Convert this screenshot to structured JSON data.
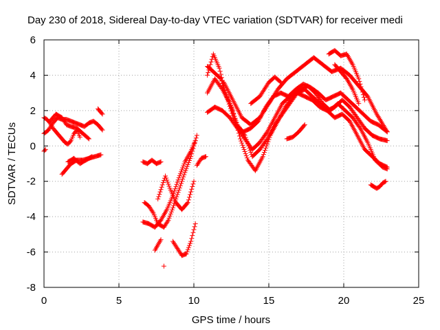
{
  "chart_data": {
    "type": "scatter",
    "title": "Day 230 of 2018, Sidereal Day-to-day VTEC variation (SDTVAR) for receiver medi",
    "xlabel": "GPS time / hours",
    "ylabel": "SDTVAR / TECUs",
    "xlim": [
      0,
      25
    ],
    "ylim": [
      -8,
      6
    ],
    "xticks": [
      "0",
      "5",
      "10",
      "15",
      "20",
      "25"
    ],
    "yticks": [
      "-8",
      "-6",
      "-4",
      "-2",
      "0",
      "2",
      "4",
      "6"
    ],
    "grid": true,
    "legend": "none",
    "marker": "+",
    "color": "#ff0000",
    "series": [
      {
        "x": [
          0,
          0.2,
          0.4,
          0.6,
          0.8,
          1.0,
          1.2,
          1.4,
          1.6,
          1.8,
          2.0,
          2.2,
          2.4
        ],
        "y": [
          1.6,
          1.5,
          1.3,
          1.0,
          0.8,
          0.6,
          0.4,
          0.2,
          0.1,
          0.3,
          0.7,
          0.9,
          0.5
        ]
      },
      {
        "x": [
          0,
          0.3,
          0.6,
          0.9,
          1.2,
          1.5,
          1.8,
          2.1,
          2.4,
          2.7,
          3.0,
          3.3,
          3.6,
          3.9
        ],
        "y": [
          0.7,
          0.9,
          1.3,
          1.6,
          1.5,
          1.5,
          1.4,
          1.3,
          1.2,
          1.1,
          1.3,
          1.4,
          1.2,
          0.9
        ]
      },
      {
        "x": [
          0.4,
          0.8,
          1.2,
          1.5,
          1.8,
          2.2,
          2.6,
          3.0
        ],
        "y": [
          1.4,
          1.8,
          1.6,
          1.2,
          1.1,
          1.0,
          0.7,
          0.4
        ]
      },
      {
        "x": [
          1.2,
          1.5,
          1.8,
          2.2,
          2.6,
          3.0,
          3.4,
          3.8
        ],
        "y": [
          -1.6,
          -1.3,
          -1.0,
          -0.8,
          -0.8,
          -0.7,
          -0.6,
          -0.5
        ]
      },
      {
        "x": [
          1.6,
          2.0,
          2.4,
          2.8,
          3.2
        ],
        "y": [
          -0.9,
          -0.7,
          -1.0,
          -0.8,
          -0.6
        ]
      },
      {
        "x": [
          3.6,
          3.7,
          3.8,
          3.9
        ],
        "y": [
          2.1,
          2.0,
          1.9,
          1.8
        ]
      },
      {
        "x": [
          0,
          0.1
        ],
        "y": [
          -0.3,
          -0.2
        ]
      },
      {
        "x": [
          6.6,
          6.9,
          7.2,
          7.5,
          7.8
        ],
        "y": [
          -0.9,
          -1.0,
          -0.8,
          -1.0,
          -0.9
        ]
      },
      {
        "x": [
          6.6,
          7.0,
          7.4,
          7.8,
          8.2,
          8.6,
          9.0,
          9.4,
          9.8,
          10.1
        ],
        "y": [
          -4.3,
          -4.4,
          -4.6,
          -4.2,
          -3.6,
          -2.8,
          -1.8,
          -0.9,
          -0.3,
          0.3
        ]
      },
      {
        "x": [
          6.7,
          7.0,
          7.3,
          7.6,
          8.0,
          8.3,
          8.6,
          9.0,
          9.4,
          9.8,
          10.2
        ],
        "y": [
          -3.2,
          -3.4,
          -3.8,
          -4.4,
          -4.6,
          -4.2,
          -3.5,
          -2.5,
          -1.5,
          -0.6,
          0.6
        ]
      },
      {
        "x": [
          7.6,
          7.9,
          8.1,
          8.4,
          8.8,
          9.2,
          9.6,
          10.0
        ],
        "y": [
          -3.0,
          -2.2,
          -1.7,
          -2.4,
          -3.2,
          -3.6,
          -3.2,
          -2.0
        ]
      },
      {
        "x": [
          7.4,
          7.6,
          7.8
        ],
        "y": [
          -5.9,
          -5.6,
          -5.3
        ]
      },
      {
        "x": [
          8.6,
          8.9,
          9.2,
          9.5,
          9.8,
          10.1
        ],
        "y": [
          -5.4,
          -5.8,
          -6.2,
          -6.1,
          -5.4,
          -4.4
        ]
      },
      {
        "x": [
          8.0
        ],
        "y": [
          -6.8
        ]
      },
      {
        "x": [
          10.2,
          10.5,
          10.8
        ],
        "y": [
          -1.1,
          -0.7,
          -0.6
        ]
      },
      {
        "x": [
          10.9,
          11.3,
          11.8,
          12.3,
          12.8,
          13.3,
          13.8,
          14.3,
          14.8,
          15.3,
          15.8,
          16.3,
          16.8,
          17.3,
          17.8,
          18.3,
          18.8,
          19.3,
          19.8,
          20.3,
          20.8,
          21.3,
          21.8,
          22.3,
          22.9
        ],
        "y": [
          4.5,
          4.2,
          3.8,
          2.5,
          1.2,
          0.8,
          1.0,
          1.4,
          2.2,
          2.8,
          3.0,
          2.8,
          3.2,
          3.5,
          3.3,
          3.0,
          2.6,
          2.8,
          3.0,
          2.6,
          2.2,
          1.8,
          1.4,
          1.2,
          0.8
        ]
      },
      {
        "x": [
          10.9,
          11.3,
          11.7,
          12.1,
          12.6,
          13.1,
          13.6,
          14.1,
          14.6,
          15.1,
          15.6,
          16.1,
          16.6,
          17.1,
          17.6,
          18.1,
          18.6,
          19.1,
          19.6,
          20.1,
          20.6,
          21.1,
          21.6,
          22.1,
          22.6,
          22.9
        ],
        "y": [
          4.0,
          5.2,
          4.4,
          3.0,
          2.0,
          0.4,
          -0.8,
          -1.4,
          -0.6,
          0.6,
          1.4,
          2.2,
          2.8,
          3.2,
          3.4,
          3.0,
          2.4,
          2.0,
          2.4,
          2.0,
          1.6,
          1.0,
          0.2,
          -0.8,
          -1.2,
          -1.3
        ]
      },
      {
        "x": [
          10.9,
          11.4,
          11.9,
          12.4,
          12.9,
          13.4,
          13.9,
          14.4,
          14.9,
          15.4,
          15.9,
          16.4,
          16.9,
          17.4,
          17.9,
          18.4,
          18.9,
          19.4,
          19.9,
          20.4,
          20.9,
          21.4,
          21.9,
          22.4,
          22.9
        ],
        "y": [
          3.0,
          3.8,
          3.2,
          2.4,
          1.2,
          0.6,
          -0.6,
          -0.2,
          0.4,
          1.2,
          1.8,
          2.4,
          3.0,
          3.2,
          2.8,
          2.4,
          2.0,
          1.6,
          1.8,
          1.4,
          0.6,
          -0.2,
          -0.6,
          -1.0,
          -1.2
        ]
      },
      {
        "x": [
          10.9,
          11.4,
          11.9,
          12.4,
          12.9,
          13.4,
          13.9,
          14.4,
          14.9,
          15.4,
          15.9,
          16.4,
          16.9,
          17.4,
          17.9,
          18.4,
          18.9,
          19.4,
          19.9,
          20.4,
          20.9,
          21.4,
          21.9,
          22.4,
          22.9
        ],
        "y": [
          1.9,
          2.2,
          2.0,
          1.6,
          1.0,
          0.4,
          -0.2,
          0.2,
          0.8,
          1.6,
          2.4,
          2.8,
          3.0,
          2.8,
          2.6,
          2.2,
          2.0,
          2.2,
          2.6,
          2.2,
          1.6,
          1.0,
          0.6,
          0.4,
          0.3
        ]
      },
      {
        "x": [
          12.0,
          12.6,
          13.2,
          13.8,
          14.4,
          15.0,
          15.6,
          16.2,
          16.8,
          17.4,
          18.0,
          18.6,
          19.2,
          19.8,
          20.4,
          21.0,
          21.6,
          22.2,
          22.9
        ],
        "y": [
          3.6,
          2.6,
          1.6,
          1.2,
          1.6,
          2.4,
          3.2,
          3.8,
          4.2,
          4.6,
          5.0,
          4.6,
          4.2,
          4.4,
          4.0,
          3.4,
          2.8,
          1.8,
          0.8
        ]
      },
      {
        "x": [
          13.8,
          14.4,
          15.0,
          15.4,
          15.8
        ],
        "y": [
          2.4,
          2.8,
          3.6,
          3.9,
          3.6
        ]
      },
      {
        "x": [
          16.2,
          16.6,
          17.0,
          17.4
        ],
        "y": [
          0.4,
          0.5,
          0.8,
          1.2
        ]
      },
      {
        "x": [
          19.0,
          19.4,
          19.8,
          20.2,
          20.6,
          21.0,
          21.4
        ],
        "y": [
          5.2,
          5.4,
          5.1,
          5.2,
          4.6,
          3.8,
          2.6
        ]
      },
      {
        "x": [
          19.4,
          19.8,
          20.2,
          20.6,
          21.0
        ],
        "y": [
          4.6,
          4.2,
          3.8,
          3.2,
          2.4
        ]
      },
      {
        "x": [
          21.8,
          22.0,
          22.2,
          22.4,
          22.6,
          22.8
        ],
        "y": [
          -2.2,
          -2.3,
          -2.4,
          -2.3,
          -2.1,
          -2.0
        ]
      }
    ]
  }
}
